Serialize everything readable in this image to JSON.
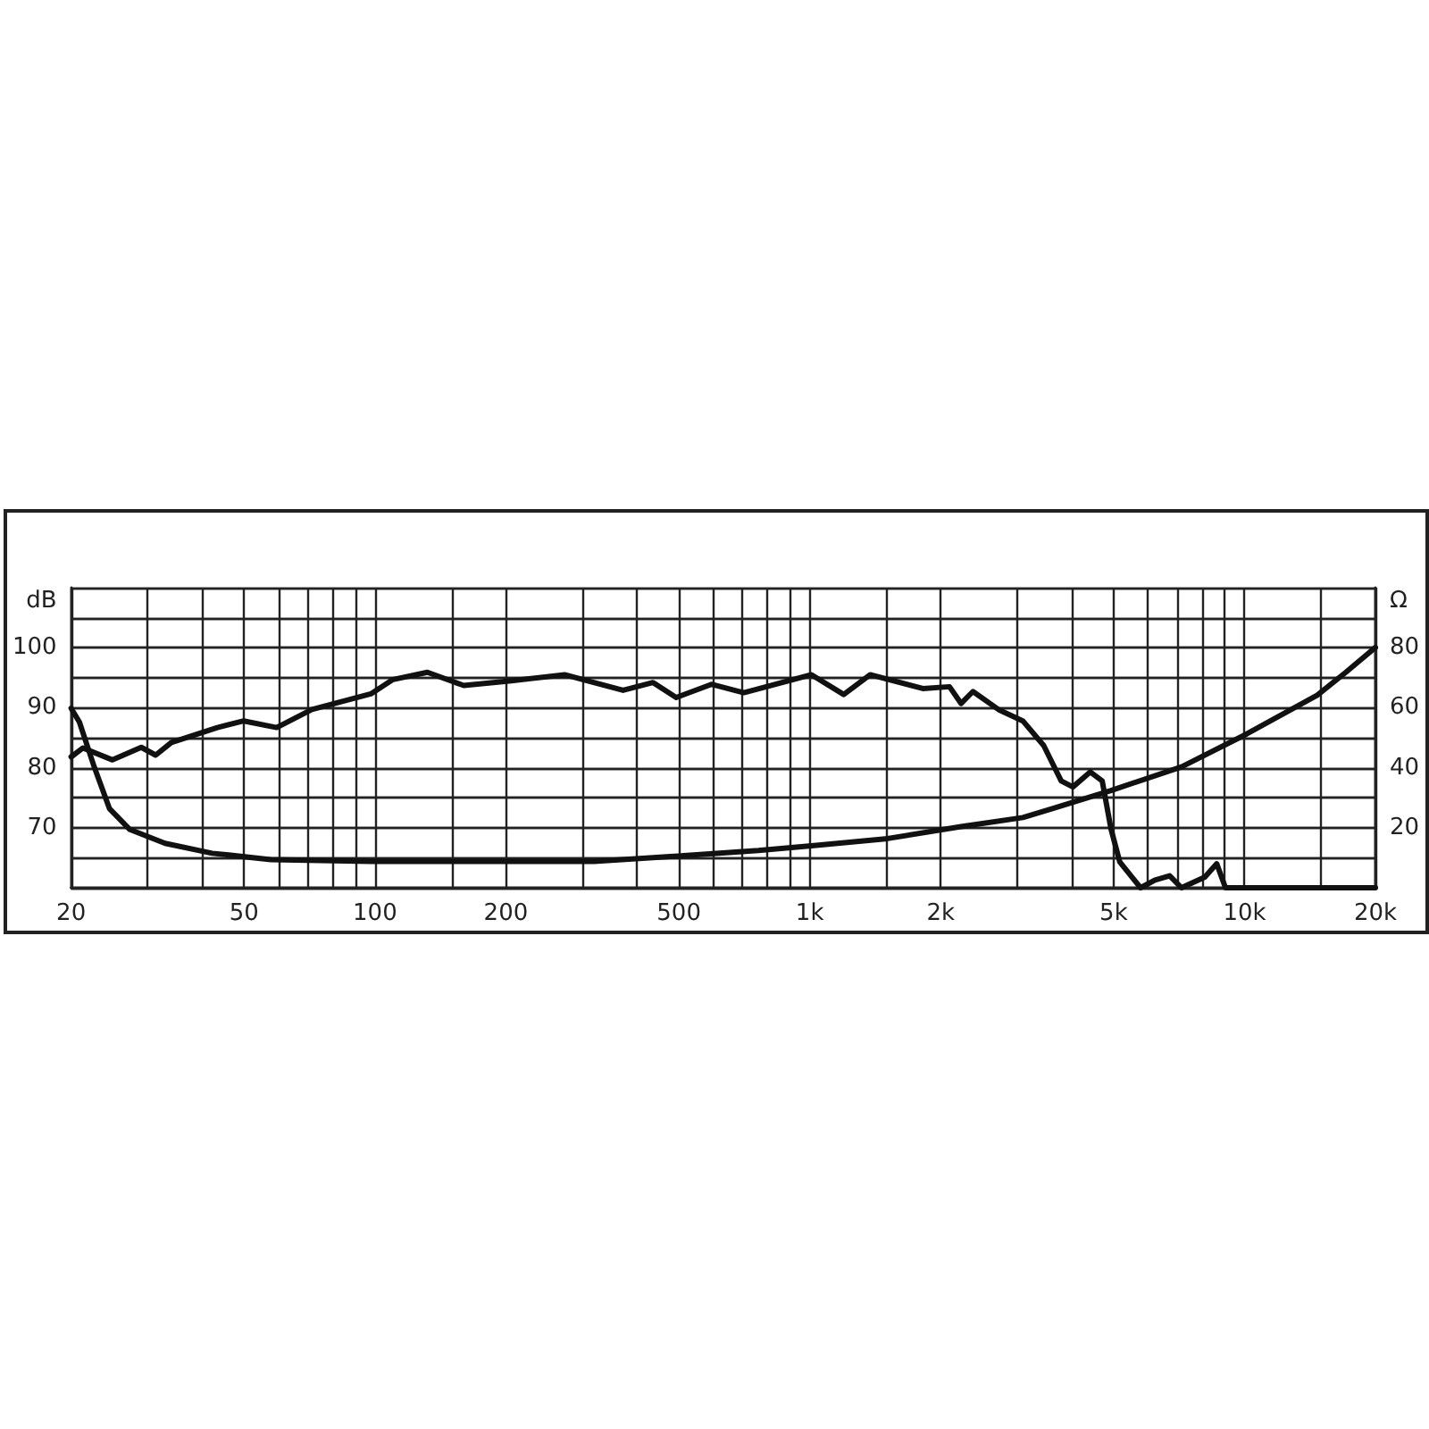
{
  "chart_data": {
    "type": "line",
    "ylabel": "dB",
    "y2label": "Ω",
    "log": "x",
    "grid": true,
    "marker": "none",
    "line_style": "solid",
    "xlim": [
      20,
      20000
    ],
    "xticks": [
      20,
      {
        "value": 30,
        "label": null
      },
      {
        "value": 40,
        "label": null
      },
      50,
      {
        "value": 60,
        "label": null
      },
      {
        "value": 70,
        "label": null
      },
      {
        "value": 80,
        "label": null
      },
      {
        "value": 90,
        "label": null
      },
      100,
      {
        "value": 150,
        "label": null
      },
      200,
      {
        "value": 300,
        "label": null
      },
      {
        "value": 400,
        "label": null
      },
      500,
      {
        "value": 600,
        "label": null
      },
      {
        "value": 700,
        "label": null
      },
      {
        "value": 800,
        "label": null
      },
      {
        "value": 900,
        "label": null
      },
      {
        "value": 1000,
        "label": "1k"
      },
      {
        "value": 1500,
        "label": null
      },
      {
        "value": 2000,
        "label": "2k"
      },
      {
        "value": 3000,
        "label": null
      },
      {
        "value": 4000,
        "label": null
      },
      {
        "value": 5000,
        "label": "5k"
      },
      {
        "value": 6000,
        "label": null
      },
      {
        "value": 7000,
        "label": null
      },
      {
        "value": 8000,
        "label": null
      },
      {
        "value": 9000,
        "label": null
      },
      {
        "value": 10000,
        "label": "10k"
      },
      {
        "value": 15000,
        "label": null
      },
      {
        "value": 20000,
        "label": "20k"
      }
    ],
    "ylim": [
      60,
      110
    ],
    "yticks": [
      {
        "value": 60,
        "label": null
      },
      {
        "value": 65,
        "label": null
      },
      70,
      {
        "value": 75,
        "label": null
      },
      80,
      {
        "value": 85,
        "label": null
      },
      90,
      {
        "value": 95,
        "label": null
      },
      100,
      {
        "value": 105,
        "label": null
      },
      {
        "value": 110,
        "label": null
      }
    ],
    "y2lim": [
      0,
      100
    ],
    "y2ticks": [
      {
        "value": 0,
        "label": null
      },
      {
        "value": 10,
        "label": null
      },
      20,
      {
        "value": 30,
        "label": null
      },
      40,
      {
        "value": 50,
        "label": null
      },
      60,
      {
        "value": 70,
        "label": null
      },
      80,
      {
        "value": 90,
        "label": null
      },
      {
        "value": 100,
        "label": null
      }
    ],
    "series": [
      {
        "color": "#111111",
        "x": [
          20,
          21.3,
          24.9,
          29,
          31.3,
          34,
          43.4,
          49.9,
          59.4,
          71.6,
          97.8,
          110,
          132,
          160,
          206,
          273,
          372,
          436,
          493,
          594,
          705,
          1009,
          1197,
          1377,
          1820,
          2096,
          2229,
          2373,
          2730,
          3091,
          3452,
          3787,
          4029,
          4419,
          4706,
          4930,
          5165,
          5766,
          6224,
          6727,
          7162,
          8106,
          8631,
          9040,
          20000
        ],
        "values": [
          81.8,
          83.3,
          81.3,
          83.4,
          82.1,
          84.2,
          86.7,
          87.8,
          86.7,
          89.7,
          92.3,
          94.7,
          95.9,
          93.7,
          94.5,
          95.5,
          92.9,
          94.2,
          91.7,
          93.9,
          92.5,
          95.5,
          92.2,
          95.5,
          93.2,
          93.5,
          90.7,
          92.7,
          89.6,
          87.8,
          83.7,
          77.8,
          76.8,
          79.3,
          77.8,
          69.8,
          64.3,
          60,
          61.3,
          62,
          60,
          61.8,
          64,
          60,
          60
        ]
      },
      {
        "color": "#111111",
        "axis": "y2",
        "x": [
          20,
          20.9,
          22.6,
          24.5,
          27.3,
          32.9,
          42.2,
          57.6,
          97.8,
          206,
          319,
          478,
          762,
          1009,
          1510,
          2229,
          3091,
          3614,
          4930,
          7162,
          10100,
          14700,
          17100,
          20000
        ],
        "values": [
          59.8,
          55.2,
          40.3,
          26.4,
          19.4,
          14.8,
          11.5,
          9.4,
          8.8,
          8.8,
          8.8,
          10.4,
          12.4,
          14,
          16.4,
          20.4,
          23.4,
          26.4,
          32.4,
          40.3,
          51.2,
          64.2,
          71.8,
          80.1
        ]
      }
    ]
  }
}
